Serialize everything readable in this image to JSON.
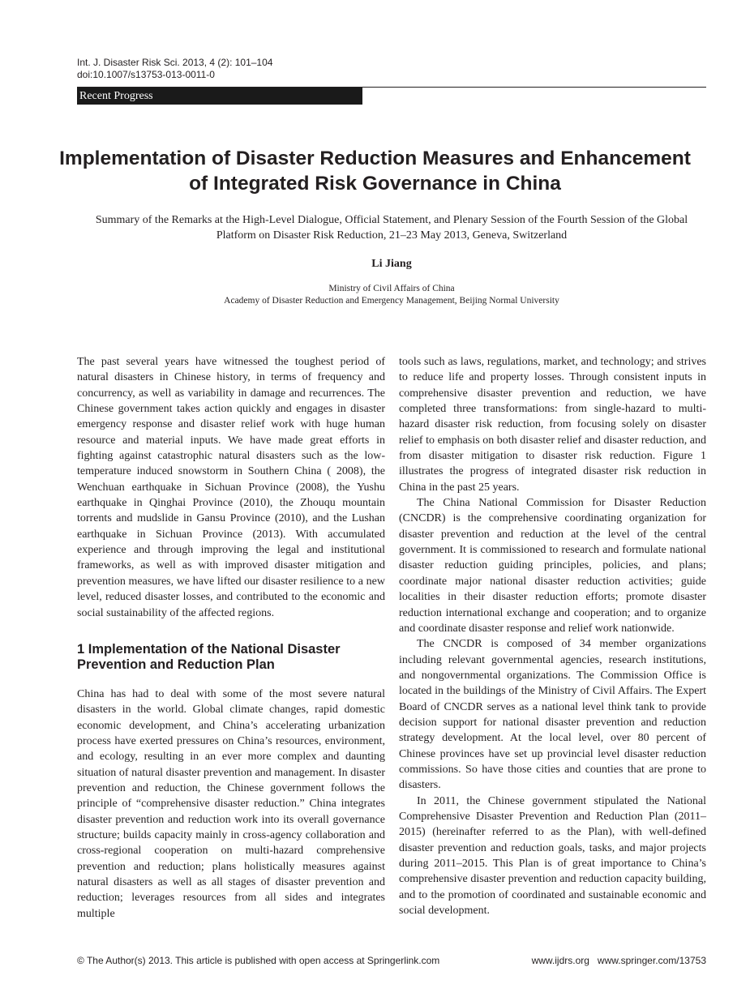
{
  "header": {
    "citation": "Int. J. Disaster Risk Sci. 2013, 4 (2): 101–104",
    "doi": "doi:10.1007/s13753-013-0011-0",
    "section": "Recent Progress"
  },
  "title": "Implementation of Disaster Reduction Measures and Enhancement of Integrated Risk Governance in China",
  "subtitle": "Summary of the Remarks at the High-Level Dialogue, Official Statement, and Plenary Session of the Fourth Session of the Global Platform on Disaster Risk Reduction, 21–23 May 2013, Geneva, Switzerland",
  "author": "Li Jiang",
  "affiliations": [
    "Ministry of Civil Affairs of China",
    "Academy of Disaster Reduction and Emergency Management, Beijing Normal University"
  ],
  "body": {
    "intro": "The past several years have witnessed the toughest period of natural disasters in Chinese history, in terms of frequency and concurrency, as well as variability in damage and recurrences. The Chinese government takes action quickly and engages in disaster emergency response and disaster relief work with huge human resource and material inputs. We have made great efforts in fighting against catastrophic natural disasters such as the low-temperature induced snowstorm in Southern China ( 2008), the Wenchuan earthquake in Sichuan Province (2008), the Yushu earthquake in Qinghai Province (2010), the Zhouqu mountain torrents and mudslide in Gansu Province (2010), and the Lushan earthquake in Sichuan Province (2013). With accumulated experience and through improving the legal and institutional frameworks, as well as with improved disaster mitigation and prevention measures, we have lifted our disaster resilience to a new level, reduced disaster losses, and contributed to the economic and social sustainability of the affected regions.",
    "section1_heading": "1   Implementation of the National Disaster Prevention and Reduction Plan",
    "section1_p1": "China has had to deal with some of the most severe natural disasters in the world. Global climate changes, rapid domestic economic development, and China’s accelerating urbaniza­tion process have exerted pressures on China’s resources, environment, and ecology, resulting in an ever more complex and daunting situation of natural disaster prevention and man­agement. In disaster prevention and reduction, the Chinese government follows the principle of “comprehensive disaster reduction.” China integrates disaster prevention and reduc­tion work into its overall governance structure; builds capac­ity mainly in cross-agency collaboration and cross-regional cooperation on multi-hazard comprehensive prevention and reduction; plans holistically measures against natural disas­ters as well as all stages of disaster prevention and reduction; leverages resources from all sides and integrates multiple tools such as laws, regulations, market, and technology; and strives to reduce life and property losses. Through consistent inputs in comprehensive disaster prevention and reduction, we have completed three transformations: from single-hazard to multi-hazard disaster risk reduction, from focusing solely on disaster relief to emphasis on both disaster relief and disaster reduction, and from disaster mitigation to disaster risk reduction. Figure 1 illustrates the progress of integrated disaster risk reduction in China in the past 25 years.",
    "section1_p2": "The China National Commission for Disaster Reduction (CNCDR) is the comprehensive coordinating organization for disaster prevention and reduction at the level of the central government. It is commissioned to research and formulate national disaster reduction guiding principles, policies, and plans; coordinate major national disaster reduction activities; guide localities in their disaster reduction efforts; promote disaster reduction international exchange and cooperation; and to organize and coordinate disaster response and relief work nationwide.",
    "section1_p3": "The CNCDR is composed of 34 member organizations including relevant governmental agencies, research institu­tions, and nongovernmental organizations. The Commission Office is located in the buildings of the Ministry of Civil Affairs. The Expert Board of CNCDR serves as a national level think tank to provide decision support for national disaster prevention and reduction strategy development. At the local level, over 80 percent of Chinese provinces have set up provincial level disaster reduction commissions. So have those cities and counties that are prone to disasters.",
    "section1_p4": "In 2011, the Chinese government stipulated the National Comprehensive Disaster Prevention and Reduction Plan (2011–2015) (hereinafter referred to as the Plan), with well-defined disaster prevention and reduction goals, tasks, and major projects during 2011–2015. This Plan is of great importance to China’s comprehensive disaster prevention and reduction capacity building, and to the promotion of coordi­nated and sustainable economic and social development."
  },
  "footer": {
    "copyright": "© The Author(s) 2013. This article is published with open access at Springerlink.com",
    "link1": "www.ijdrs.org",
    "link2": "www.springer.com/13753"
  }
}
